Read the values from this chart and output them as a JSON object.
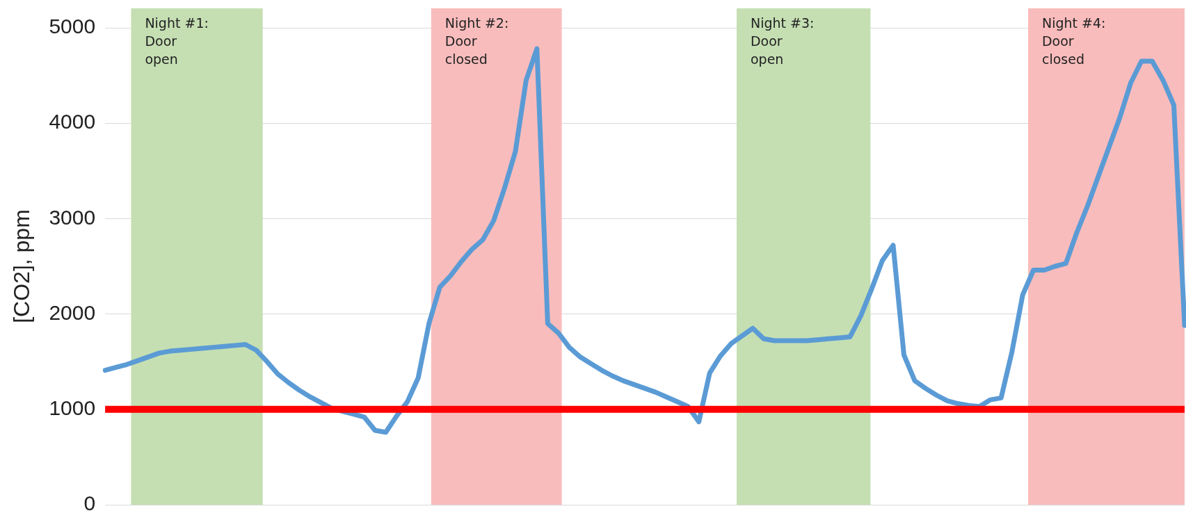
{
  "chart_data": {
    "type": "line",
    "ylabel": "[CO2], ppm",
    "ylim": [
      0,
      5000
    ],
    "yticks": [
      0,
      1000,
      2000,
      3000,
      4000,
      5000
    ],
    "grid": "y",
    "tick_labels": "y",
    "categories": [
      null,
      null,
      null,
      null,
      null,
      null,
      null,
      null,
      null,
      null,
      null,
      null,
      null,
      null,
      null,
      null,
      null,
      null,
      null,
      null,
      null,
      null,
      null,
      null,
      null,
      null,
      null,
      null,
      null,
      null,
      null,
      null,
      null,
      null,
      null,
      null,
      null,
      null,
      null,
      null,
      null,
      null,
      null,
      null,
      null,
      null,
      null,
      null,
      null,
      null,
      null,
      null,
      null,
      null,
      null,
      null,
      null,
      null,
      null,
      null,
      null,
      null,
      null,
      null,
      null,
      null,
      null,
      null,
      null,
      null,
      null,
      null,
      null,
      null,
      null,
      null,
      null,
      null,
      null,
      null,
      null,
      null,
      null,
      null,
      null,
      null,
      null,
      null,
      null,
      null,
      null,
      null,
      null,
      null,
      null,
      null,
      null,
      null,
      null,
      null,
      null
    ],
    "series": [
      {
        "color": "#5b9bd5",
        "values": [
          1410,
          1440,
          1470,
          1510,
          1550,
          1590,
          1610,
          1620,
          1630,
          1640,
          1650,
          1660,
          1670,
          1680,
          1620,
          1500,
          1370,
          1280,
          1200,
          1130,
          1070,
          1010,
          980,
          950,
          920,
          780,
          760,
          930,
          1080,
          1330,
          1900,
          2280,
          2400,
          2550,
          2680,
          2780,
          2980,
          3320,
          3700,
          4450,
          4780,
          1900,
          1800,
          1650,
          1550,
          1480,
          1410,
          1350,
          1300,
          1260,
          1220,
          1180,
          1130,
          1080,
          1030,
          870,
          1380,
          1560,
          1690,
          1770,
          1850,
          1740,
          1720,
          1720,
          1720,
          1720,
          1730,
          1740,
          1750,
          1760,
          1980,
          2260,
          2560,
          2720,
          1570,
          1300,
          1220,
          1150,
          1090,
          1060,
          1040,
          1030,
          1100,
          1120,
          1600,
          2200,
          2460,
          2460,
          2500,
          2530,
          2850,
          3130,
          3440,
          3750,
          4060,
          4420,
          4650,
          4650,
          4450,
          4190,
          1880
        ]
      }
    ],
    "annotations": [
      "Night #1:\nDoor\nopen",
      "Night #2:\nDoor\nclosed",
      "Night #3:\nDoor\nopen",
      "Night #4:\nDoor\nclosed"
    ],
    "ref_lines": [
      {
        "axis": "y",
        "value": 1000,
        "color": "#ff0000"
      }
    ]
  }
}
